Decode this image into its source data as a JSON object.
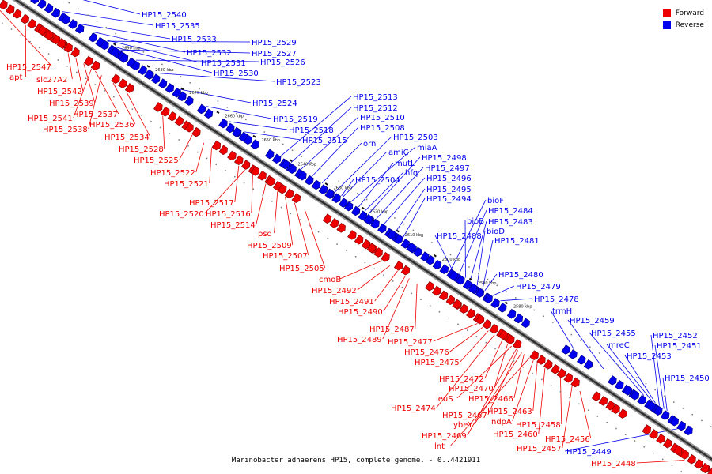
{
  "legend": [
    {
      "label": "Forward",
      "color": "#ee0000"
    },
    {
      "label": "Reverse",
      "color": "#0000ee"
    }
  ],
  "caption": "Marinobacter adhaerens HP15, complete genome. - 0..4421911",
  "kbp_ticks": [
    "2690 kbp",
    "2680 kbp",
    "2670 kbp",
    "2660 kbp",
    "2650 kbp",
    "2640 kbp",
    "2630 kbp",
    "2620 kbp",
    "2610 kbp",
    "2600 kbp",
    "2590 kbp",
    "2580 kbp"
  ],
  "genes": [
    {
      "name": "HP15_2540",
      "strand": "reverse",
      "pos": 0.056
    },
    {
      "name": "HP15_2535",
      "strand": "reverse",
      "pos": 0.11
    },
    {
      "name": "HP15_2533",
      "strand": "reverse",
      "pos": 0.135
    },
    {
      "name": "HP15_2532",
      "strand": "reverse",
      "pos": 0.15
    },
    {
      "name": "HP15_2531",
      "strand": "reverse",
      "pos": 0.165
    },
    {
      "name": "HP15_2530",
      "strand": "reverse",
      "pos": 0.18
    },
    {
      "name": "HP15_2529",
      "strand": "reverse",
      "pos": 0.168
    },
    {
      "name": "HP15_2527",
      "strand": "reverse",
      "pos": 0.185
    },
    {
      "name": "HP15_2526",
      "strand": "reverse",
      "pos": 0.205
    },
    {
      "name": "HP15_2523",
      "strand": "reverse",
      "pos": 0.23
    },
    {
      "name": "HP15_2524",
      "strand": "reverse",
      "pos": 0.262
    },
    {
      "name": "HP15_2519",
      "strand": "reverse",
      "pos": 0.295
    },
    {
      "name": "HP15_2518",
      "strand": "reverse",
      "pos": 0.325
    },
    {
      "name": "HP15_2515",
      "strand": "reverse",
      "pos": 0.345
    },
    {
      "name": "HP15_2513",
      "strand": "reverse",
      "pos": 0.392
    },
    {
      "name": "HP15_2512",
      "strand": "reverse",
      "pos": 0.405
    },
    {
      "name": "HP15_2510",
      "strand": "reverse",
      "pos": 0.418
    },
    {
      "name": "HP15_2508",
      "strand": "reverse",
      "pos": 0.432
    },
    {
      "name": "orn",
      "strand": "reverse",
      "pos": 0.445
    },
    {
      "name": "HP15_2503",
      "strand": "reverse",
      "pos": 0.462
    },
    {
      "name": "amiC",
      "strand": "reverse",
      "pos": 0.472
    },
    {
      "name": "miaA",
      "strand": "reverse",
      "pos": 0.482
    },
    {
      "name": "mutL",
      "strand": "reverse",
      "pos": 0.492
    },
    {
      "name": "HP15_2498",
      "strand": "reverse",
      "pos": 0.505
    },
    {
      "name": "hfq",
      "strand": "reverse",
      "pos": 0.5
    },
    {
      "name": "HP15_2497",
      "strand": "reverse",
      "pos": 0.515
    },
    {
      "name": "HP15_2504",
      "strand": "reverse",
      "pos": 0.47
    },
    {
      "name": "HP15_2496",
      "strand": "reverse",
      "pos": 0.525
    },
    {
      "name": "HP15_2495",
      "strand": "reverse",
      "pos": 0.54
    },
    {
      "name": "HP15_2494",
      "strand": "reverse",
      "pos": 0.55
    },
    {
      "name": "bioF",
      "strand": "reverse",
      "pos": 0.612
    },
    {
      "name": "HP15_2484",
      "strand": "reverse",
      "pos": 0.622
    },
    {
      "name": "bioB",
      "strand": "reverse",
      "pos": 0.63
    },
    {
      "name": "HP15_2483",
      "strand": "reverse",
      "pos": 0.636
    },
    {
      "name": "bioD",
      "strand": "reverse",
      "pos": 0.645
    },
    {
      "name": "HP15_2488",
      "strand": "reverse",
      "pos": 0.612
    },
    {
      "name": "HP15_2481",
      "strand": "reverse",
      "pos": 0.652
    },
    {
      "name": "HP15_2480",
      "strand": "reverse",
      "pos": 0.655
    },
    {
      "name": "HP15_2479",
      "strand": "reverse",
      "pos": 0.665
    },
    {
      "name": "HP15_2478",
      "strand": "reverse",
      "pos": 0.675
    },
    {
      "name": "trmH",
      "strand": "reverse",
      "pos": 0.77
    },
    {
      "name": "HP15_2459",
      "strand": "reverse",
      "pos": 0.808
    },
    {
      "name": "HP15_2455",
      "strand": "reverse",
      "pos": 0.86
    },
    {
      "name": "mreC",
      "strand": "reverse",
      "pos": 0.87
    },
    {
      "name": "HP15_2452",
      "strand": "reverse",
      "pos": 0.88
    },
    {
      "name": "HP15_2451",
      "strand": "reverse",
      "pos": 0.886
    },
    {
      "name": "HP15_2453",
      "strand": "reverse",
      "pos": 0.875
    },
    {
      "name": "HP15_2450",
      "strand": "reverse",
      "pos": 0.89
    },
    {
      "name": "HP15_2449",
      "strand": "reverse",
      "pos": 0.92
    },
    {
      "name": "HP15_2547",
      "strand": "forward",
      "pos": 0.045
    },
    {
      "name": "apt",
      "strand": "forward",
      "pos": 0.085
    },
    {
      "name": "slc27A2",
      "strand": "forward",
      "pos": 0.14
    },
    {
      "name": "HP15_2542",
      "strand": "forward",
      "pos": 0.15
    },
    {
      "name": "HP15_2539",
      "strand": "forward",
      "pos": 0.16
    },
    {
      "name": "HP15_2537",
      "strand": "forward",
      "pos": 0.175
    },
    {
      "name": "HP15_2541",
      "strand": "forward",
      "pos": 0.17
    },
    {
      "name": "HP15_2538",
      "strand": "forward",
      "pos": 0.183
    },
    {
      "name": "HP15_2536",
      "strand": "forward",
      "pos": 0.198
    },
    {
      "name": "HP15_2534",
      "strand": "forward",
      "pos": 0.215
    },
    {
      "name": "HP15_2528",
      "strand": "forward",
      "pos": 0.262
    },
    {
      "name": "HP15_2525",
      "strand": "forward",
      "pos": 0.3
    },
    {
      "name": "HP15_2522",
      "strand": "forward",
      "pos": 0.315
    },
    {
      "name": "HP15_2521",
      "strand": "forward",
      "pos": 0.325
    },
    {
      "name": "HP15_2517",
      "strand": "forward",
      "pos": 0.36
    },
    {
      "name": "HP15_2520",
      "strand": "forward",
      "pos": 0.368
    },
    {
      "name": "HP15_2516",
      "strand": "forward",
      "pos": 0.378
    },
    {
      "name": "HP15_2514",
      "strand": "forward",
      "pos": 0.395
    },
    {
      "name": "psd",
      "strand": "forward",
      "pos": 0.41
    },
    {
      "name": "HP15_2509",
      "strand": "forward",
      "pos": 0.42
    },
    {
      "name": "HP15_2507",
      "strand": "forward",
      "pos": 0.432
    },
    {
      "name": "HP15_2505",
      "strand": "forward",
      "pos": 0.445
    },
    {
      "name": "cmoB",
      "strand": "forward",
      "pos": 0.545
    },
    {
      "name": "HP15_2492",
      "strand": "forward",
      "pos": 0.555
    },
    {
      "name": "HP15_2491",
      "strand": "forward",
      "pos": 0.565
    },
    {
      "name": "HP15_2490",
      "strand": "forward",
      "pos": 0.575
    },
    {
      "name": "HP15_2487",
      "strand": "forward",
      "pos": 0.59
    },
    {
      "name": "HP15_2489",
      "strand": "forward",
      "pos": 0.58
    },
    {
      "name": "HP15_2477",
      "strand": "forward",
      "pos": 0.668
    },
    {
      "name": "HP15_2476",
      "strand": "forward",
      "pos": 0.675
    },
    {
      "name": "HP15_2475",
      "strand": "forward",
      "pos": 0.682
    },
    {
      "name": "HP15_2472",
      "strand": "forward",
      "pos": 0.7
    },
    {
      "name": "HP15_2470",
      "strand": "forward",
      "pos": 0.707
    },
    {
      "name": "leuS",
      "strand": "forward",
      "pos": 0.712
    },
    {
      "name": "HP15_2466",
      "strand": "forward",
      "pos": 0.728
    },
    {
      "name": "HP15_2474",
      "strand": "forward",
      "pos": 0.69
    },
    {
      "name": "HP15_2467",
      "strand": "forward",
      "pos": 0.72
    },
    {
      "name": "HP15_2463",
      "strand": "forward",
      "pos": 0.745
    },
    {
      "name": "ybeY",
      "strand": "forward",
      "pos": 0.725
    },
    {
      "name": "ndpA",
      "strand": "forward",
      "pos": 0.74
    },
    {
      "name": "HP15_2458",
      "strand": "forward",
      "pos": 0.775
    },
    {
      "name": "HP15_2460",
      "strand": "forward",
      "pos": 0.755
    },
    {
      "name": "HP15_2469",
      "strand": "forward",
      "pos": 0.718
    },
    {
      "name": "lnt",
      "strand": "forward",
      "pos": 0.735
    },
    {
      "name": "HP15_2456",
      "strand": "forward",
      "pos": 0.8
    },
    {
      "name": "HP15_2457",
      "strand": "forward",
      "pos": 0.79
    },
    {
      "name": "HP15_2448",
      "strand": "forward",
      "pos": 0.935
    }
  ]
}
